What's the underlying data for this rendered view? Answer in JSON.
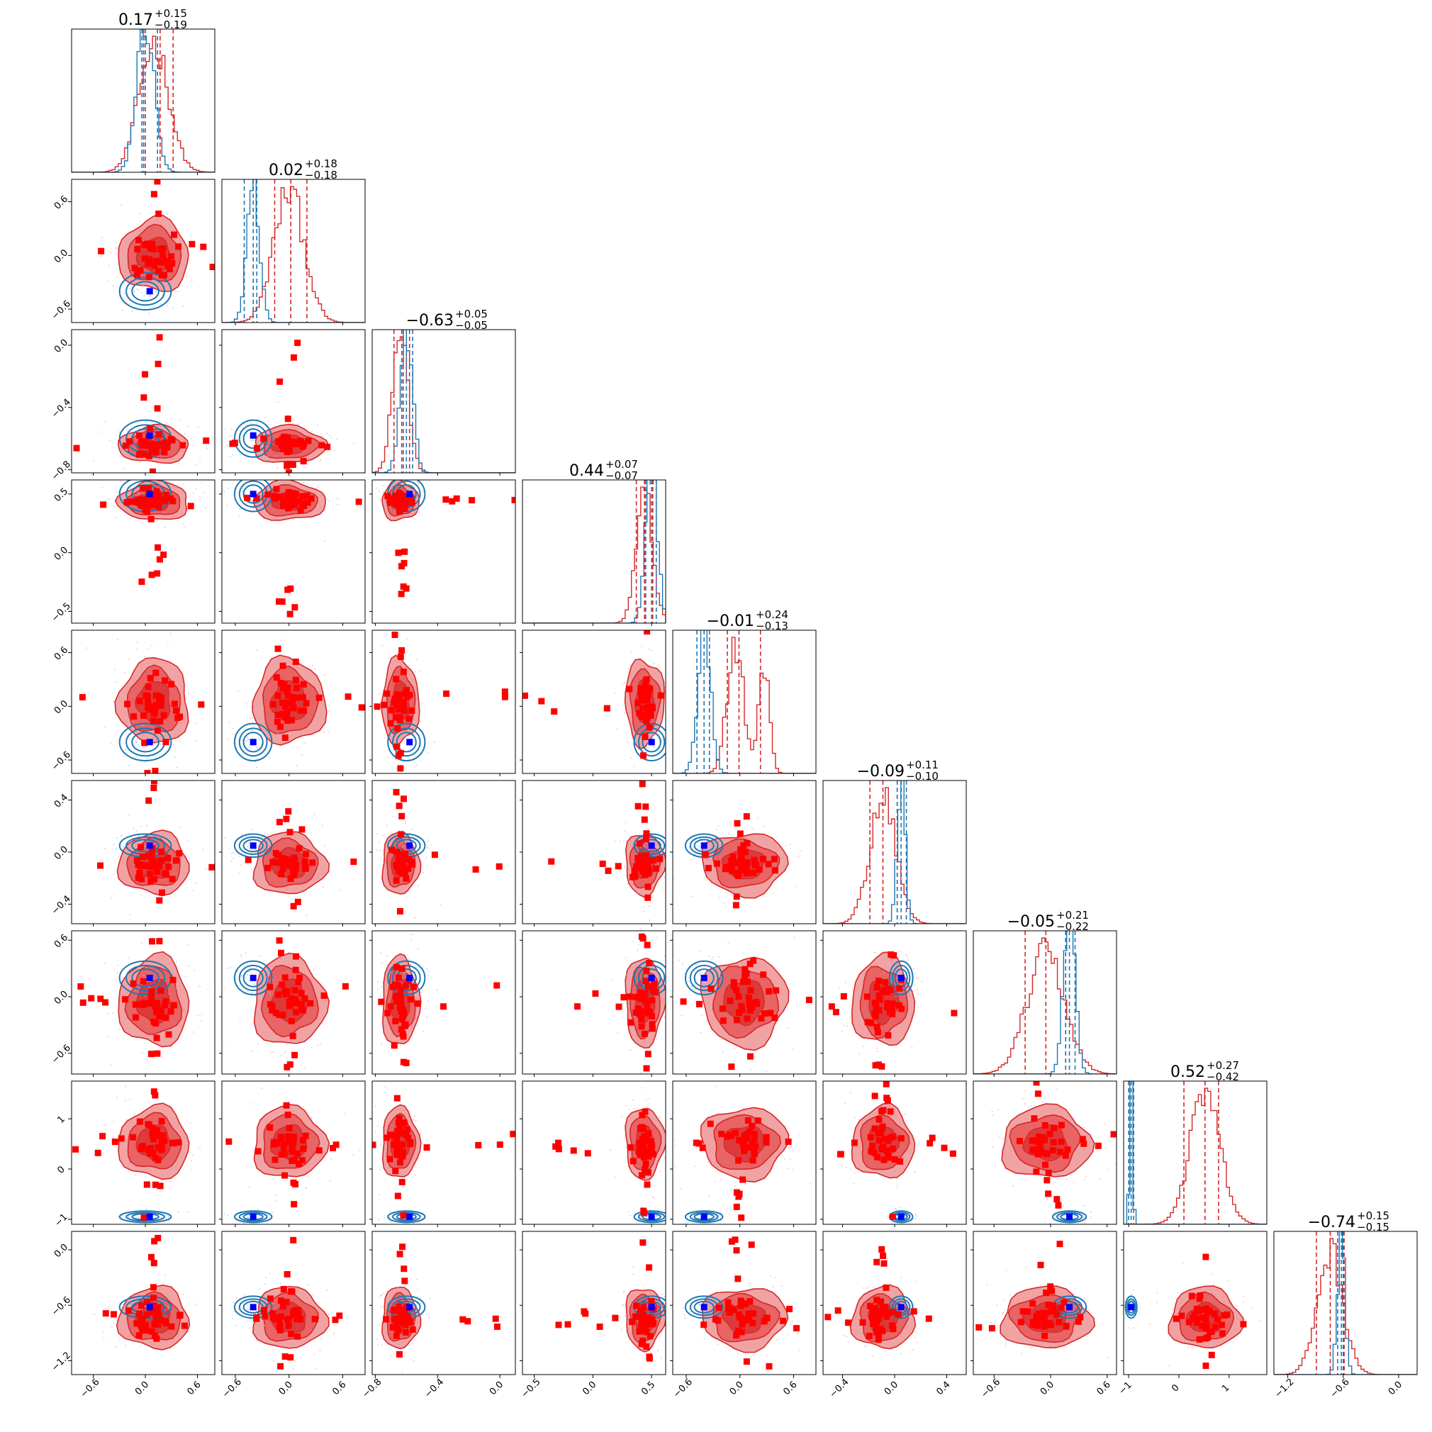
{
  "chart_data": {
    "type": "corner",
    "n_params": 9,
    "grid": "off",
    "colors": {
      "blue": "#1f77b4",
      "red": "#d62728",
      "marker_red": "#ff0000",
      "marker_blue": "#0000ff",
      "fill_light": "#f1a3a4",
      "fill_dark": "#dc3a3b"
    },
    "titles": [
      {
        "main": "0.17",
        "plus": "+0.15",
        "minus": "−0.19"
      },
      {
        "main": "0.02",
        "plus": "+0.18",
        "minus": "−0.18"
      },
      {
        "main": "−0.63",
        "plus": "+0.05",
        "minus": "−0.05"
      },
      {
        "main": "0.44",
        "plus": "+0.07",
        "minus": "−0.07"
      },
      {
        "main": "−0.01",
        "plus": "+0.24",
        "minus": "−0.13"
      },
      {
        "main": "−0.09",
        "plus": "+0.11",
        "minus": "−0.10"
      },
      {
        "main": "−0.05",
        "plus": "+0.21",
        "minus": "−0.22"
      },
      {
        "main": "0.52",
        "plus": "+0.27",
        "minus": "−0.42"
      },
      {
        "main": "−0.74",
        "plus": "+0.15",
        "minus": "−0.15"
      }
    ],
    "params": [
      {
        "range": [
          -0.85,
          0.8
        ],
        "ticks": [
          -0.6,
          0.0,
          0.6
        ],
        "tick_labels": [
          "−0.6",
          "0.0",
          "0.6"
        ],
        "red": {
          "center": 0.1,
          "sd": 0.17
        },
        "blue": {
          "center": 0.0,
          "sd": 0.1
        },
        "red_q": [
          -0.02,
          0.17,
          0.32
        ],
        "blue_q": [
          -0.04,
          0.0,
          0.14
        ],
        "truth": 0.05
      },
      {
        "range": [
          -0.75,
          0.85
        ],
        "ticks": [
          -0.6,
          0.0,
          0.6
        ],
        "tick_labels": [
          "−0.6",
          "0.0",
          "0.6"
        ],
        "red": {
          "center": 0.0,
          "sd": 0.17
        },
        "blue": {
          "center": -0.4,
          "sd": 0.07
        },
        "red_q": [
          -0.16,
          0.02,
          0.2
        ],
        "blue_q": [
          -0.5,
          -0.4,
          -0.36
        ],
        "truth": -0.4
      },
      {
        "range": [
          -0.82,
          0.1
        ],
        "ticks": [
          -0.8,
          -0.4,
          0.0
        ],
        "tick_labels": [
          "−0.8",
          "−0.4",
          "0.0"
        ],
        "red": {
          "center": -0.64,
          "sd": 0.05
        },
        "blue": {
          "center": -0.6,
          "sd": 0.04
        },
        "red_q": [
          -0.68,
          -0.63,
          -0.58
        ],
        "blue_q": [
          -0.62,
          -0.6,
          -0.56
        ],
        "truth": -0.58
      },
      {
        "range": [
          -0.6,
          0.62
        ],
        "ticks": [
          -0.5,
          0.0,
          0.5
        ],
        "tick_labels": [
          "−0.5",
          "0.0",
          "0.5"
        ],
        "red": {
          "center": 0.44,
          "sd": 0.07
        },
        "blue": {
          "center": 0.5,
          "sd": 0.05
        },
        "red_q": [
          0.37,
          0.44,
          0.51
        ],
        "blue_q": [
          0.45,
          0.5,
          0.54
        ],
        "truth": 0.5
      },
      {
        "range": [
          -0.75,
          0.85
        ],
        "ticks": [
          -0.6,
          0.0,
          0.6
        ],
        "tick_labels": [
          "−0.6",
          "0.0",
          "0.6"
        ],
        "red": {
          "center": 0.05,
          "sd": 0.2
        },
        "blue": {
          "center": -0.4,
          "sd": 0.07
        },
        "red_q": [
          -0.14,
          -0.01,
          0.23
        ],
        "blue_q": [
          -0.48,
          -0.4,
          -0.34
        ],
        "truth": -0.4
      },
      {
        "range": [
          -0.55,
          0.55
        ],
        "ticks": [
          -0.4,
          0.0,
          0.4
        ],
        "tick_labels": [
          "−0.4",
          "0.0",
          "0.4"
        ],
        "red": {
          "center": -0.09,
          "sd": 0.1
        },
        "blue": {
          "center": 0.05,
          "sd": 0.03
        },
        "red_q": [
          -0.19,
          -0.09,
          0.02
        ],
        "blue_q": [
          0.02,
          0.05,
          0.09
        ],
        "truth": 0.05
      },
      {
        "range": [
          -0.82,
          0.7
        ],
        "ticks": [
          -0.6,
          0.0,
          0.6
        ],
        "tick_labels": [
          "−0.6",
          "0.0",
          "0.6"
        ],
        "red": {
          "center": -0.05,
          "sd": 0.2
        },
        "blue": {
          "center": 0.2,
          "sd": 0.06
        },
        "red_q": [
          -0.27,
          -0.05,
          0.16
        ],
        "blue_q": [
          0.16,
          0.2,
          0.26
        ],
        "truth": 0.2
      },
      {
        "range": [
          -1.1,
          1.75
        ],
        "ticks": [
          -1.0,
          0.0,
          1.0
        ],
        "tick_labels": [
          "−1",
          "0",
          "1"
        ],
        "red": {
          "center": 0.52,
          "sd": 0.3
        },
        "blue": {
          "center": -0.95,
          "sd": 0.03
        },
        "red_q": [
          0.1,
          0.52,
          0.79
        ],
        "blue_q": [
          -1.0,
          -0.95,
          -0.9
        ],
        "truth": -0.95
      },
      {
        "range": [
          -1.35,
          0.2
        ],
        "ticks": [
          -1.2,
          -0.6,
          0.0
        ],
        "tick_labels": [
          "−1.2",
          "−0.6",
          "0.0"
        ],
        "red": {
          "center": -0.74,
          "sd": 0.14
        },
        "blue": {
          "center": -0.62,
          "sd": 0.04
        },
        "red_q": [
          -0.89,
          -0.74,
          -0.59
        ],
        "blue_q": [
          -0.66,
          -0.62,
          -0.6
        ],
        "truth": -0.62
      }
    ]
  }
}
